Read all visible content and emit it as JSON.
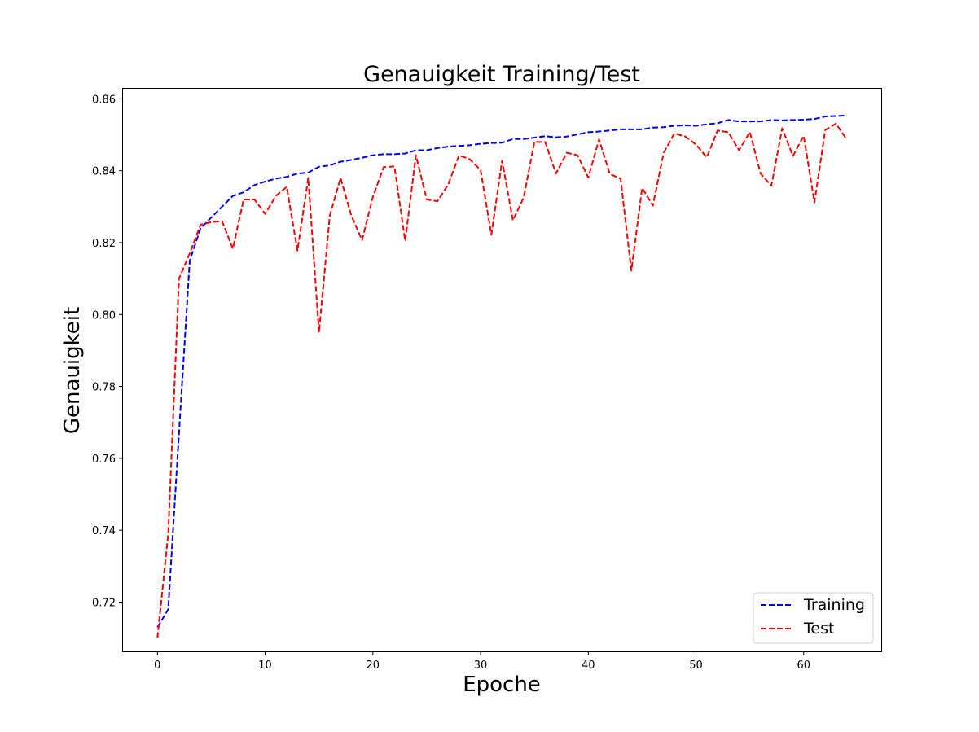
{
  "chart_data": {
    "type": "line",
    "title": "Genauigkeit Training/Test",
    "xlabel": "Epoche",
    "ylabel": "Genauigkeit",
    "xlim": [
      -3.2,
      67.2
    ],
    "ylim": [
      0.7063,
      0.8628
    ],
    "x_ticks": [
      0,
      10,
      20,
      30,
      40,
      50,
      60
    ],
    "y_ticks": [
      0.72,
      0.74,
      0.76,
      0.78,
      0.8,
      0.82,
      0.84,
      0.86
    ],
    "y_tick_labels": [
      "0.72",
      "0.74",
      "0.76",
      "0.78",
      "0.80",
      "0.82",
      "0.84",
      "0.86"
    ],
    "grid": false,
    "legend_position": "lower-right",
    "series": [
      {
        "name": "Training",
        "color": "#0000ff",
        "style": "dashed",
        "x": [
          0,
          1,
          2,
          3,
          4,
          5,
          6,
          7,
          8,
          9,
          10,
          11,
          12,
          13,
          14,
          15,
          16,
          17,
          18,
          19,
          20,
          21,
          22,
          23,
          24,
          25,
          26,
          27,
          28,
          29,
          30,
          31,
          32,
          33,
          34,
          35,
          36,
          37,
          38,
          39,
          40,
          41,
          42,
          43,
          44,
          45,
          46,
          47,
          48,
          49,
          50,
          51,
          52,
          53,
          54,
          55,
          56,
          57,
          58,
          59,
          60,
          61,
          62,
          63,
          64
        ],
        "values": [
          0.713,
          0.718,
          0.767,
          0.815,
          0.824,
          0.827,
          0.83,
          0.833,
          0.834,
          0.836,
          0.837,
          0.8378,
          0.8383,
          0.8392,
          0.8395,
          0.8411,
          0.8415,
          0.8425,
          0.843,
          0.8436,
          0.8443,
          0.8446,
          0.8446,
          0.8448,
          0.8457,
          0.8457,
          0.8463,
          0.8467,
          0.8469,
          0.8471,
          0.8475,
          0.8477,
          0.8478,
          0.8488,
          0.8488,
          0.8492,
          0.8496,
          0.8493,
          0.8495,
          0.8501,
          0.8507,
          0.8509,
          0.8512,
          0.8515,
          0.8515,
          0.8515,
          0.852,
          0.8521,
          0.8525,
          0.8526,
          0.8525,
          0.8529,
          0.8532,
          0.8541,
          0.8537,
          0.8537,
          0.8537,
          0.8541,
          0.854,
          0.8541,
          0.8542,
          0.8544,
          0.8551,
          0.8552,
          0.8554
        ]
      },
      {
        "name": "Test",
        "color": "#ff0000",
        "style": "dashed",
        "x": [
          0,
          1,
          2,
          3,
          4,
          5,
          6,
          7,
          8,
          9,
          10,
          11,
          12,
          13,
          14,
          15,
          16,
          17,
          18,
          19,
          20,
          21,
          22,
          23,
          24,
          25,
          26,
          27,
          28,
          29,
          30,
          31,
          32,
          33,
          34,
          35,
          36,
          37,
          38,
          39,
          40,
          41,
          42,
          43,
          44,
          45,
          46,
          47,
          48,
          49,
          50,
          51,
          52,
          53,
          54,
          55,
          56,
          57,
          58,
          59,
          60,
          61,
          62,
          63,
          64
        ],
        "values": [
          0.71,
          0.739,
          0.81,
          0.817,
          0.825,
          0.8257,
          0.826,
          0.8183,
          0.832,
          0.832,
          0.828,
          0.833,
          0.8355,
          0.8178,
          0.838,
          0.795,
          0.8275,
          0.838,
          0.8275,
          0.8207,
          0.8327,
          0.841,
          0.8412,
          0.8205,
          0.8443,
          0.832,
          0.8315,
          0.8362,
          0.8443,
          0.8432,
          0.8402,
          0.8222,
          0.8428,
          0.8262,
          0.8325,
          0.848,
          0.848,
          0.8392,
          0.845,
          0.8443,
          0.8381,
          0.8487,
          0.8391,
          0.8378,
          0.8122,
          0.8352,
          0.8303,
          0.845,
          0.8504,
          0.8495,
          0.8473,
          0.8437,
          0.8512,
          0.8507,
          0.8457,
          0.8508,
          0.8392,
          0.8358,
          0.8518,
          0.8441,
          0.8497,
          0.8312,
          0.8513,
          0.8531,
          0.8487
        ]
      }
    ]
  }
}
